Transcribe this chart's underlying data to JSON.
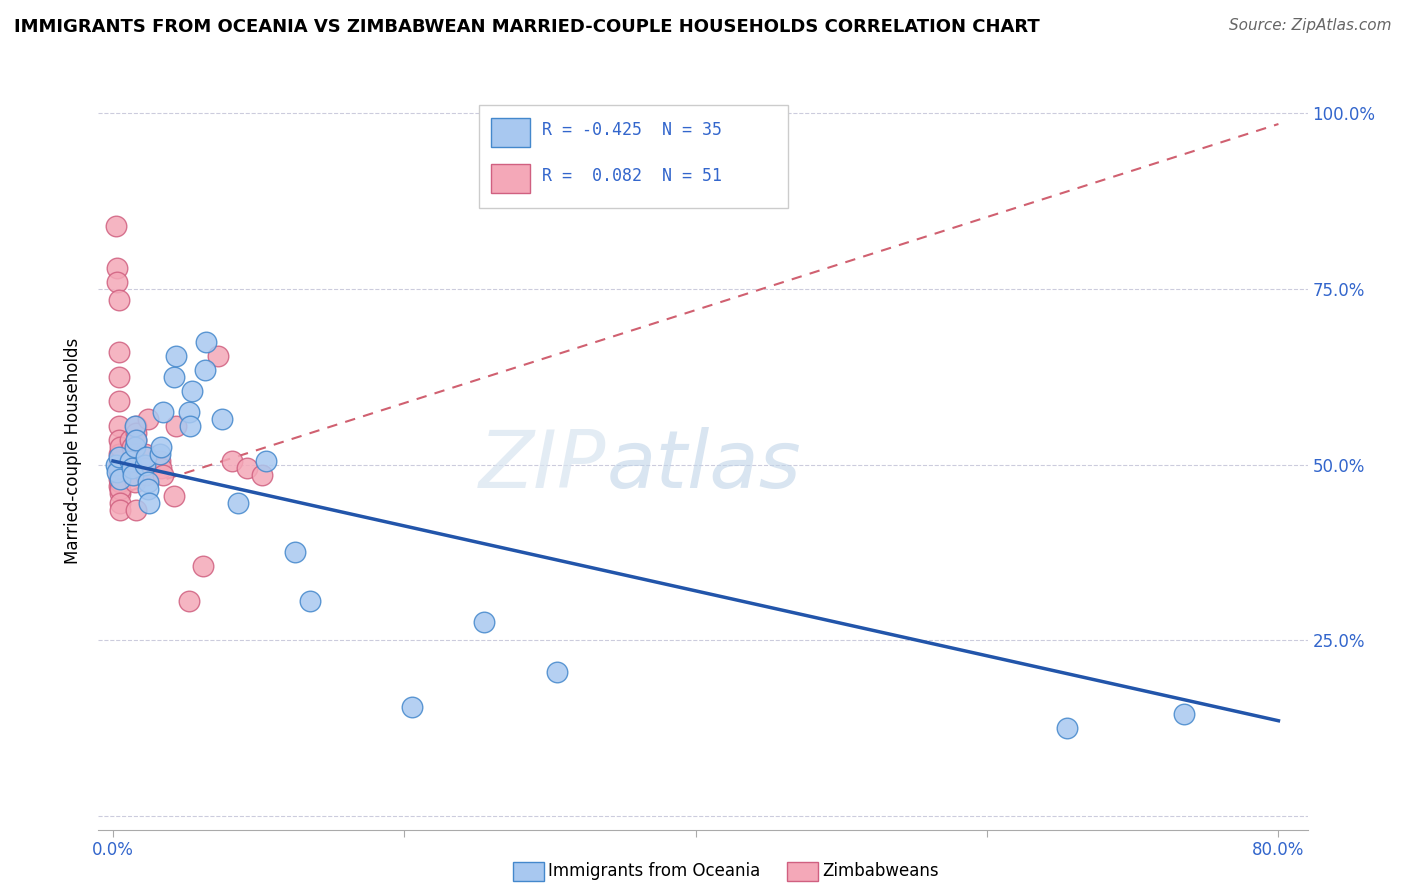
{
  "title": "IMMIGRANTS FROM OCEANIA VS ZIMBABWEAN MARRIED-COUPLE HOUSEHOLDS CORRELATION CHART",
  "source": "Source: ZipAtlas.com",
  "ylabel": "Married-couple Households",
  "xlim": [
    -0.01,
    0.82
  ],
  "ylim": [
    -0.02,
    1.06
  ],
  "R_blue": -0.425,
  "N_blue": 35,
  "R_pink": 0.082,
  "N_pink": 51,
  "color_blue_fill": "#A8C8F0",
  "color_blue_edge": "#4488CC",
  "color_blue_line": "#2255AA",
  "color_pink_fill": "#F4A8B8",
  "color_pink_edge": "#D06080",
  "color_pink_line": "#D06070",
  "blue_line_x": [
    0.0,
    0.8
  ],
  "blue_line_y": [
    0.505,
    0.135
  ],
  "pink_line_x": [
    0.0,
    0.8
  ],
  "pink_line_y": [
    0.455,
    0.985
  ],
  "blue_points_x": [
    0.002,
    0.003,
    0.004,
    0.005,
    0.012,
    0.013,
    0.014,
    0.015,
    0.015,
    0.016,
    0.022,
    0.023,
    0.024,
    0.024,
    0.025,
    0.032,
    0.033,
    0.034,
    0.042,
    0.043,
    0.052,
    0.053,
    0.054,
    0.063,
    0.064,
    0.075,
    0.086,
    0.105,
    0.125,
    0.135,
    0.205,
    0.255,
    0.305,
    0.655,
    0.735
  ],
  "blue_points_y": [
    0.5,
    0.49,
    0.51,
    0.48,
    0.505,
    0.495,
    0.485,
    0.525,
    0.555,
    0.535,
    0.5,
    0.51,
    0.475,
    0.465,
    0.445,
    0.515,
    0.525,
    0.575,
    0.625,
    0.655,
    0.575,
    0.555,
    0.605,
    0.635,
    0.675,
    0.565,
    0.445,
    0.505,
    0.375,
    0.305,
    0.155,
    0.275,
    0.205,
    0.125,
    0.145
  ],
  "pink_points_x": [
    0.002,
    0.003,
    0.003,
    0.004,
    0.004,
    0.004,
    0.004,
    0.004,
    0.004,
    0.004,
    0.004,
    0.004,
    0.004,
    0.004,
    0.005,
    0.005,
    0.005,
    0.005,
    0.005,
    0.005,
    0.005,
    0.005,
    0.005,
    0.005,
    0.005,
    0.012,
    0.013,
    0.014,
    0.014,
    0.015,
    0.015,
    0.015,
    0.016,
    0.016,
    0.016,
    0.016,
    0.022,
    0.022,
    0.023,
    0.024,
    0.032,
    0.033,
    0.034,
    0.042,
    0.043,
    0.052,
    0.062,
    0.072,
    0.082,
    0.092,
    0.102
  ],
  "pink_points_y": [
    0.84,
    0.78,
    0.76,
    0.735,
    0.66,
    0.625,
    0.59,
    0.555,
    0.535,
    0.515,
    0.5,
    0.49,
    0.48,
    0.47,
    0.46,
    0.505,
    0.515,
    0.485,
    0.475,
    0.465,
    0.445,
    0.435,
    0.505,
    0.525,
    0.495,
    0.535,
    0.525,
    0.515,
    0.505,
    0.495,
    0.485,
    0.475,
    0.555,
    0.545,
    0.535,
    0.435,
    0.515,
    0.495,
    0.485,
    0.565,
    0.505,
    0.495,
    0.485,
    0.455,
    0.555,
    0.305,
    0.355,
    0.655,
    0.505,
    0.495,
    0.485
  ],
  "grid_color": "#CCCCDD",
  "grid_yticks": [
    0.0,
    0.25,
    0.5,
    0.75,
    1.0
  ],
  "x_tick_positions": [
    0.0,
    0.2,
    0.4,
    0.6,
    0.8
  ],
  "x_tick_labels": [
    "0.0%",
    "",
    "",
    "",
    "80.0%"
  ],
  "y_tick_labels_right": [
    "",
    "25.0%",
    "50.0%",
    "75.0%",
    "100.0%"
  ],
  "watermark_text": "ZIPatlas",
  "legend_blue_text": "R = -0.425  N = 35",
  "legend_pink_text": "R =  0.082  N = 51",
  "bottom_label_blue": "Immigrants from Oceania",
  "bottom_label_pink": "Zimbabweans"
}
